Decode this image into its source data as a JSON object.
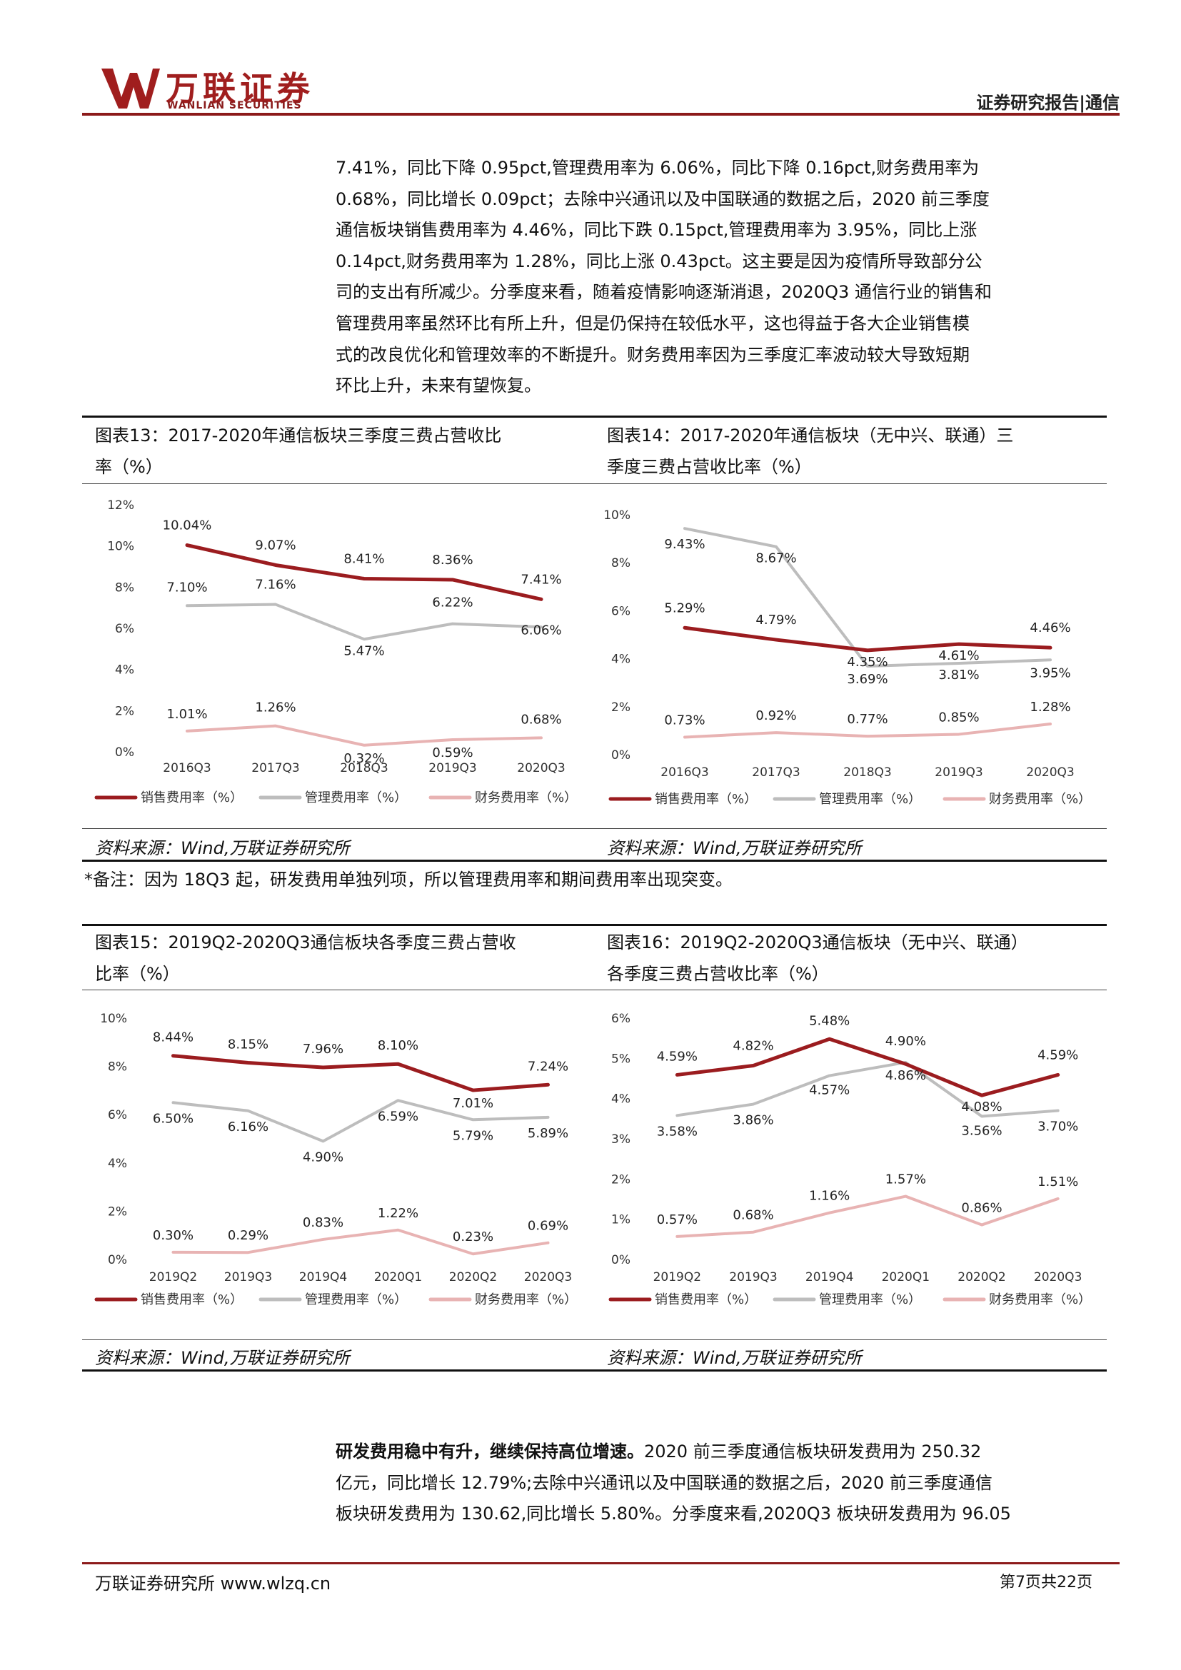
{
  "header": {
    "logo_cn": "万联证券",
    "logo_en": "WANLIAN SECURITIES",
    "section": "证券研究报告|通信"
  },
  "intro_paragraph": [
    "7.41%，同比下降 0.95pct,管理费用率为 6.06%，同比下降 0.16pct,财务费用率为",
    "0.68%，同比增长 0.09pct；去除中兴通讯以及中国联通的数据之后，2020 前三季度",
    "通信板块销售费用率为 4.46%，同比下跌 0.15pct,管理费用率为 3.95%，同比上涨",
    "0.14pct,财务费用率为 1.28%，同比上涨 0.43pct。这主要是因为疫情所导致部分公",
    "司的支出有所减少。分季度来看，随着疫情影响逐渐消退，2020Q3 通信行业的销售和",
    "管理费用率虽然环比有所上升，但是仍保持在较低水平，这也得益于各大企业销售模",
    "式的改良优化和管理效率的不断提升。财务费用率因为三季度汇率波动较大导致短期",
    "环比上升，未来有望恢复。"
  ],
  "figures": {
    "fig13": {
      "title_lines": [
        "图表13：2017-2020年通信板块三季度三费占营收比",
        "率（%）"
      ],
      "source": "资料来源：Wind,万联证券研究所"
    },
    "fig14": {
      "title_lines": [
        "图表14：2017-2020年通信板块（无中兴、联通）三",
        "季度三费占营收比率（%）"
      ],
      "source": "资料来源：Wind,万联证券研究所"
    },
    "fig15": {
      "title_lines": [
        "图表15：2019Q2-2020Q3通信板块各季度三费占营收",
        "比率（%）"
      ],
      "source": "资料来源：Wind,万联证券研究所"
    },
    "fig16": {
      "title_lines": [
        "图表16：2019Q2-2020Q3通信板块（无中兴、联通）",
        "各季度三费占营收比率（%）"
      ],
      "source": "资料来源：Wind,万联证券研究所"
    }
  },
  "note": "*备注：因为 18Q3 起，研发费用单独列项，所以管理费用率和期间费用率出现突变。",
  "rd_paragraph": {
    "bold_lead": "研发费用稳中有升，继续保持高位增速。",
    "line1_rest": "2020 前三季度通信板块研发费用为 250.32",
    "line2": "亿元，同比增长 12.79%;去除中兴通讯以及中国联通的数据之后，2020 前三季度通信",
    "line3": "板块研发费用为 130.62,同比增长 5.80%。分季度来看,2020Q3 板块研发费用为 96.05"
  },
  "footer": {
    "left": "万联证券研究所 www.wlzq.cn",
    "right": "第7页共22页"
  },
  "colors": {
    "brand": "#a01e1e",
    "sales": "#9b1c1f",
    "admin": "#bdbdbd",
    "finance": "#e8b3b3"
  },
  "chart_data": [
    {
      "id": "fig13",
      "type": "line",
      "categories": [
        "2016Q3",
        "2017Q3",
        "2018Q3",
        "2019Q3",
        "2020Q3"
      ],
      "ylim": [
        0,
        12
      ],
      "yticks": [
        0,
        2,
        4,
        6,
        8,
        10,
        12
      ],
      "tick_labels": [
        "0%",
        "2%",
        "4%",
        "6%",
        "8%",
        "10%",
        "12%"
      ],
      "series": [
        {
          "name": "销售费用率（%）",
          "values": [
            10.04,
            9.07,
            8.41,
            8.36,
            7.41
          ],
          "labels": [
            "10.04%",
            "9.07%",
            "8.41%",
            "8.36%",
            "7.41%"
          ]
        },
        {
          "name": "管理费用率（%）",
          "values": [
            7.1,
            7.16,
            5.47,
            6.22,
            6.06
          ],
          "labels": [
            "7.10%",
            "7.16%",
            "5.47%",
            "6.22%",
            "6.06%"
          ]
        },
        {
          "name": "财务费用率（%）",
          "values": [
            1.01,
            1.26,
            0.32,
            0.59,
            0.68
          ],
          "labels": [
            "1.01%",
            "1.26%",
            "0.32%",
            "0.59%",
            "0.68%"
          ]
        }
      ]
    },
    {
      "id": "fig14",
      "type": "line",
      "categories": [
        "2016Q3",
        "2017Q3",
        "2018Q3",
        "2019Q3",
        "2020Q3"
      ],
      "ylim": [
        0,
        10
      ],
      "yticks": [
        0,
        2,
        4,
        6,
        8,
        10
      ],
      "tick_labels": [
        "0%",
        "2%",
        "4%",
        "6%",
        "8%",
        "10%"
      ],
      "series": [
        {
          "name": "销售费用率（%）",
          "values": [
            5.29,
            4.79,
            4.35,
            4.61,
            4.46
          ],
          "labels": [
            "5.29%",
            "4.79%",
            "4.35%",
            "4.61%",
            "4.46%"
          ]
        },
        {
          "name": "管理费用率（%）",
          "values": [
            9.43,
            8.67,
            3.69,
            3.81,
            3.95
          ],
          "labels": [
            "9.43%",
            "8.67%",
            "3.69%",
            "3.81%",
            "3.95%"
          ]
        },
        {
          "name": "财务费用率（%）",
          "values": [
            0.73,
            0.92,
            0.77,
            0.85,
            1.28
          ],
          "labels": [
            "0.73%",
            "0.92%",
            "0.77%",
            "0.85%",
            "1.28%"
          ]
        }
      ]
    },
    {
      "id": "fig15",
      "type": "line",
      "categories": [
        "2019Q2",
        "2019Q3",
        "2019Q4",
        "2020Q1",
        "2020Q2",
        "2020Q3"
      ],
      "ylim": [
        0,
        10
      ],
      "yticks": [
        0,
        2,
        4,
        6,
        8,
        10
      ],
      "tick_labels": [
        "0%",
        "2%",
        "4%",
        "6%",
        "8%",
        "10%"
      ],
      "series": [
        {
          "name": "销售费用率（%）",
          "values": [
            8.44,
            8.15,
            7.96,
            8.1,
            7.01,
            7.24
          ],
          "labels": [
            "8.44%",
            "8.15%",
            "7.96%",
            "8.10%",
            "7.01%",
            "7.24%"
          ]
        },
        {
          "name": "管理费用率（%）",
          "values": [
            6.5,
            6.16,
            4.9,
            6.59,
            5.79,
            5.89
          ],
          "labels": [
            "6.50%",
            "6.16%",
            "4.90%",
            "6.59%",
            "5.79%",
            "5.89%"
          ]
        },
        {
          "name": "财务费用率（%）",
          "values": [
            0.3,
            0.29,
            0.83,
            1.22,
            0.23,
            0.69
          ],
          "labels": [
            "0.30%",
            "0.29%",
            "0.83%",
            "1.22%",
            "0.23%",
            "0.69%"
          ]
        }
      ]
    },
    {
      "id": "fig16",
      "type": "line",
      "categories": [
        "2019Q2",
        "2019Q3",
        "2019Q4",
        "2020Q1",
        "2020Q2",
        "2020Q3"
      ],
      "ylim": [
        0,
        6
      ],
      "yticks": [
        0,
        1,
        2,
        3,
        4,
        5,
        6
      ],
      "tick_labels": [
        "0%",
        "1%",
        "2%",
        "3%",
        "4%",
        "5%",
        "6%"
      ],
      "series": [
        {
          "name": "销售费用率（%）",
          "values": [
            4.59,
            4.82,
            5.48,
            4.86,
            4.08,
            4.59
          ],
          "labels": [
            "4.59%",
            "4.82%",
            "5.48%",
            "4.86%",
            "4.08%",
            "4.59%"
          ]
        },
        {
          "name": "管理费用率（%）",
          "values": [
            3.58,
            3.86,
            4.57,
            4.9,
            3.56,
            3.7
          ],
          "labels": [
            "3.58%",
            "3.86%",
            "4.57%",
            "4.90%",
            "3.56%",
            "3.70%"
          ]
        },
        {
          "name": "财务费用率（%）",
          "values": [
            0.57,
            0.68,
            1.16,
            1.57,
            0.86,
            1.51
          ],
          "labels": [
            "0.57%",
            "0.68%",
            "1.16%",
            "1.57%",
            "0.86%",
            "1.51%"
          ]
        }
      ]
    }
  ]
}
